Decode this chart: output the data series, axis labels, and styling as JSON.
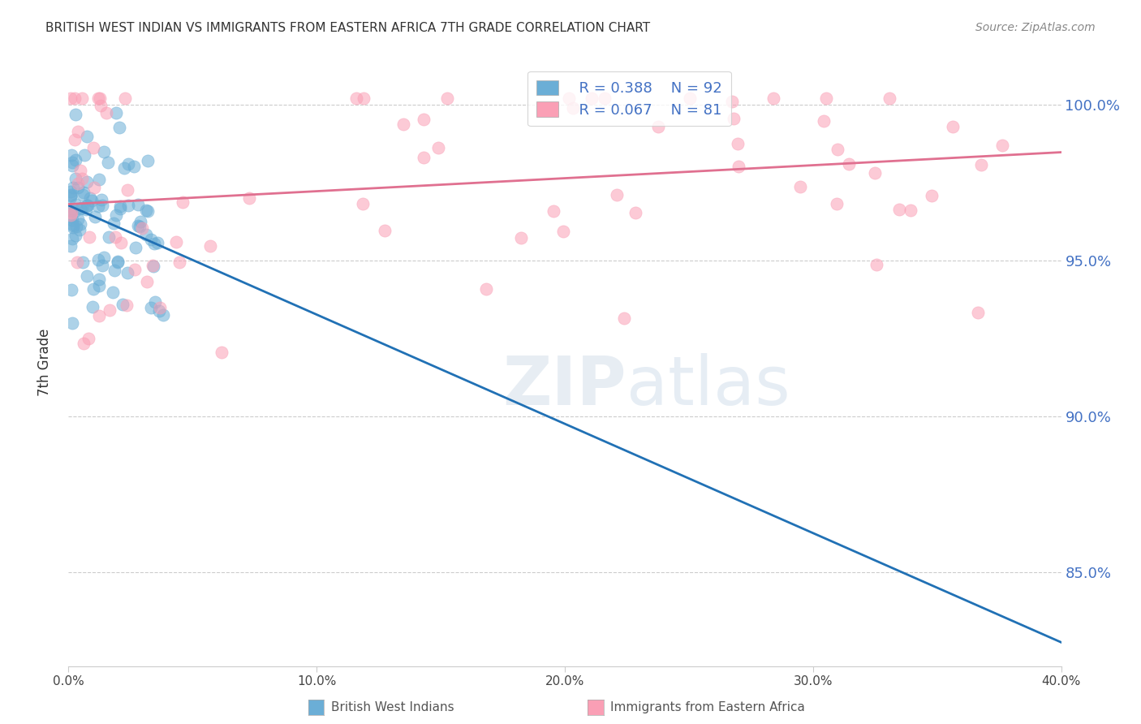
{
  "title": "BRITISH WEST INDIAN VS IMMIGRANTS FROM EASTERN AFRICA 7TH GRADE CORRELATION CHART",
  "source": "Source: ZipAtlas.com",
  "ylabel": "7th Grade",
  "ytick_labels": [
    "100.0%",
    "95.0%",
    "90.0%",
    "85.0%"
  ],
  "ytick_values": [
    1.0,
    0.95,
    0.9,
    0.85
  ],
  "xlim": [
    0.0,
    0.4
  ],
  "ylim": [
    0.82,
    1.015
  ],
  "legend_blue_r": "R = 0.388",
  "legend_blue_n": "N = 92",
  "legend_pink_r": "R = 0.067",
  "legend_pink_n": "N = 81",
  "blue_color": "#6baed6",
  "pink_color": "#fa9fb5",
  "blue_line_color": "#2171b5",
  "pink_line_color": "#e07090",
  "grid_color": "#cccccc",
  "background_color": "#ffffff"
}
